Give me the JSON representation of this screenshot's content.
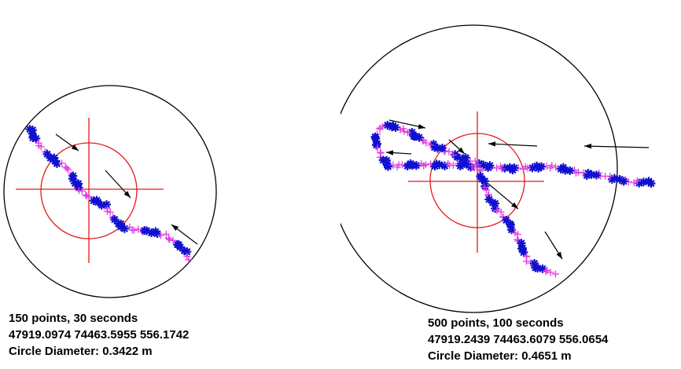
{
  "colors": {
    "outer_circle": "#000000",
    "inner_circle": "#e31a1c",
    "crosshair": "#e31a1c",
    "track_primary": "#1010d0",
    "track_secondary": "#e040e0",
    "arrow": "#000000"
  },
  "panels": [
    {
      "caption": {
        "points": "150 points, 30 seconds",
        "coords": "47919.0974 74463.5955 556.1742",
        "diameter": "Circle Diameter: 0.3422 m"
      }
    },
    {
      "caption": {
        "points": "500 points, 100 seconds",
        "coords": "47919.2439 74463.6079 556.0654",
        "diameter": "Circle Diameter: 0.4651 m"
      }
    }
  ]
}
